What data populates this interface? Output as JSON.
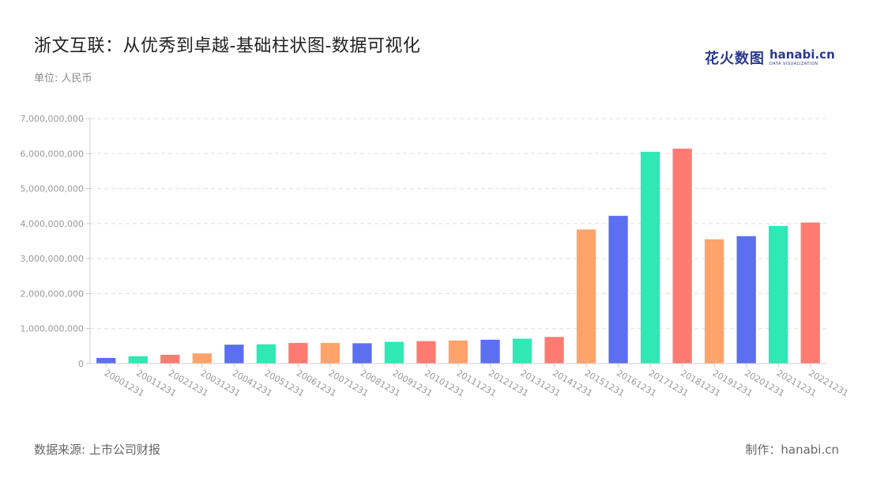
{
  "title": "浙文互联：从优秀到卓越-基础柱状图-数据可视化",
  "unit": "单位: 人民币",
  "logo": {
    "cn": "花火数图",
    "en": "hanabi.cn",
    "sub": "DATA VISUALIZATION"
  },
  "source": "数据来源: 上市公司财报",
  "maker": "制作：hanabi.cn",
  "colors": {
    "palette": [
      "#5b6ff0",
      "#2fe8b4",
      "#ff7b72",
      "#ffa36b"
    ],
    "grid": "#dddddd",
    "axis": "#cccccc"
  },
  "chart_data": {
    "type": "bar",
    "categories": [
      "20001231",
      "20011231",
      "20021231",
      "20031231",
      "20041231",
      "20051231",
      "20061231",
      "20071231",
      "20081231",
      "20091231",
      "20101231",
      "20111231",
      "20121231",
      "20131231",
      "20141231",
      "20151231",
      "20161231",
      "20171231",
      "20181231",
      "20191231",
      "20201231",
      "20211231",
      "20221231"
    ],
    "values": [
      160000000,
      210000000,
      250000000,
      290000000,
      540000000,
      550000000,
      590000000,
      590000000,
      580000000,
      620000000,
      640000000,
      660000000,
      680000000,
      710000000,
      760000000,
      3830000000,
      4220000000,
      6050000000,
      6140000000,
      3550000000,
      3640000000,
      3930000000,
      4030000000
    ],
    "yticks": [
      "0",
      "1,000,000,000",
      "2,000,000,000",
      "3,000,000,000",
      "4,000,000,000",
      "5,000,000,000",
      "6,000,000,000",
      "7,000,000,000"
    ],
    "ylim": [
      0,
      7000000000
    ],
    "grid": true,
    "xlabel": "",
    "ylabel": ""
  }
}
